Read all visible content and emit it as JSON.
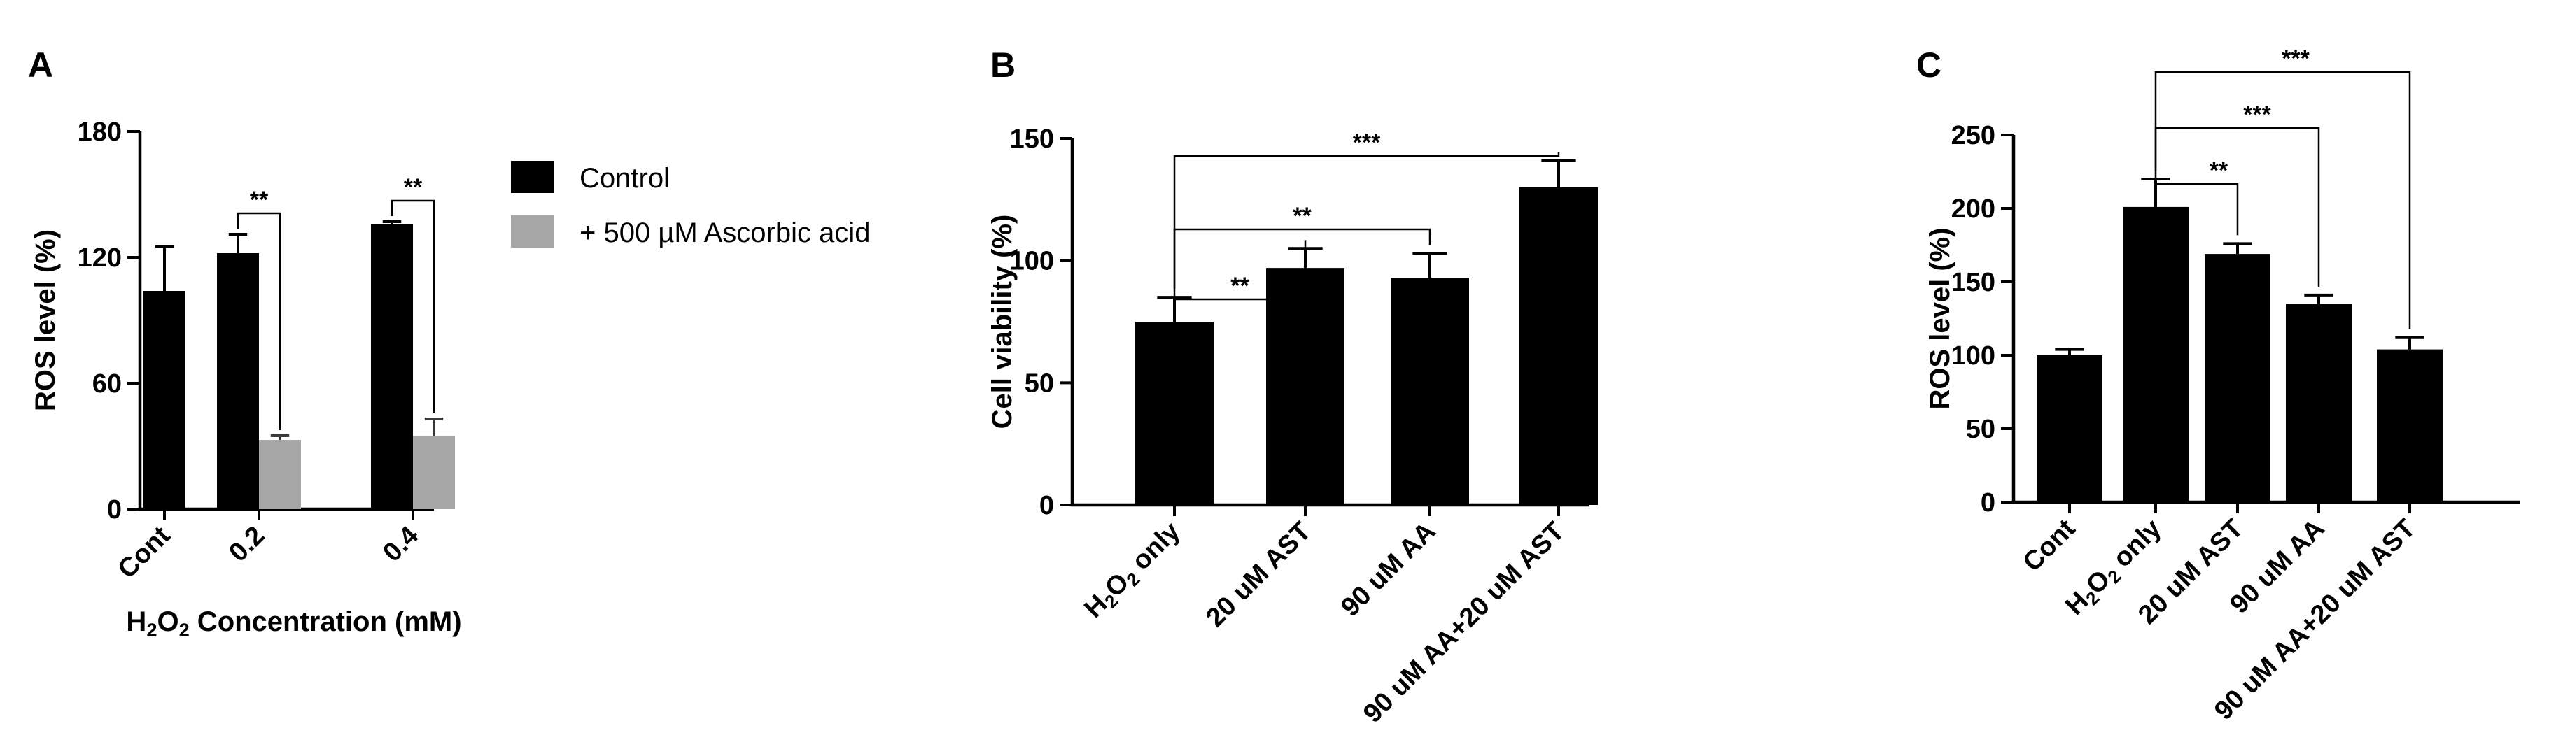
{
  "chart_data": [
    {
      "type": "bar",
      "panel_label": "A",
      "ylabel": "ROS level (%)",
      "xlabel": "H2O2 Concentration (mM)",
      "xlabel_parts": [
        {
          "t": "H",
          "sub": false
        },
        {
          "t": "2",
          "sub": true
        },
        {
          "t": "O",
          "sub": false
        },
        {
          "t": "2",
          "sub": true
        },
        {
          "t": " Concentration (mM)",
          "sub": false
        }
      ],
      "ylim": [
        0,
        180
      ],
      "yticks": [
        0,
        60,
        120,
        180
      ],
      "categories": [
        "Cont",
        "0.2",
        "0.4"
      ],
      "series": [
        {
          "name": "Control",
          "color": "#000000",
          "values": [
            104,
            122,
            136
          ],
          "errors": [
            21,
            9,
            1
          ]
        },
        {
          "name": "+ 500 µM Ascorbic acid",
          "color": "#a6a6a6",
          "values": [
            null,
            33,
            35
          ],
          "errors": [
            null,
            2,
            8
          ]
        }
      ],
      "legend": "right",
      "significance": [
        {
          "label": "**",
          "from": [
            1,
            0
          ],
          "to": [
            1,
            1
          ]
        },
        {
          "label": "**",
          "from": [
            2,
            0
          ],
          "to": [
            2,
            1
          ]
        }
      ]
    },
    {
      "type": "bar",
      "panel_label": "B",
      "ylabel": "Cell viability (%)",
      "xlabel": "",
      "ylim": [
        0,
        150
      ],
      "yticks": [
        0,
        50,
        100,
        150
      ],
      "categories": [
        "H2O2 only",
        "20 uM AST",
        "90 uM AA",
        "90 uM AA+20 uM AST"
      ],
      "category_parts": [
        [
          {
            "t": "H",
            "sub": false
          },
          {
            "t": "2",
            "sub": true
          },
          {
            "t": "O",
            "sub": false
          },
          {
            "t": "2",
            "sub": true
          },
          {
            "t": " only",
            "sub": false
          }
        ],
        null,
        null,
        null
      ],
      "series": [
        {
          "color": "#000000",
          "values": [
            75,
            97,
            93,
            130
          ],
          "errors": [
            10,
            8,
            10,
            11
          ]
        }
      ],
      "significance": [
        {
          "label": "**",
          "from": 0,
          "to": 1
        },
        {
          "label": "**",
          "from": 0,
          "to": 2
        },
        {
          "label": "***",
          "from": 0,
          "to": 3
        }
      ]
    },
    {
      "type": "bar",
      "panel_label": "C",
      "ylabel": "ROS level (%)",
      "xlabel": "",
      "ylim": [
        0,
        250
      ],
      "yticks": [
        0,
        50,
        100,
        150,
        200,
        250
      ],
      "categories": [
        "Cont",
        "H2O2 only",
        "20 uM AST",
        "90 uM AA",
        "90 uM AA+20 uM AST"
      ],
      "category_parts": [
        null,
        [
          {
            "t": "H",
            "sub": false
          },
          {
            "t": "2",
            "sub": true
          },
          {
            "t": "O",
            "sub": false
          },
          {
            "t": "2",
            "sub": true
          },
          {
            "t": " only",
            "sub": false
          }
        ],
        null,
        null,
        null
      ],
      "series": [
        {
          "color": "#000000",
          "values": [
            100,
            201,
            169,
            135,
            104
          ],
          "errors": [
            4,
            19,
            7,
            6,
            8
          ]
        }
      ],
      "significance": [
        {
          "label": "**",
          "from": 1,
          "to": 2
        },
        {
          "label": "***",
          "from": 1,
          "to": 3
        },
        {
          "label": "***",
          "from": 1,
          "to": 4
        }
      ]
    }
  ]
}
